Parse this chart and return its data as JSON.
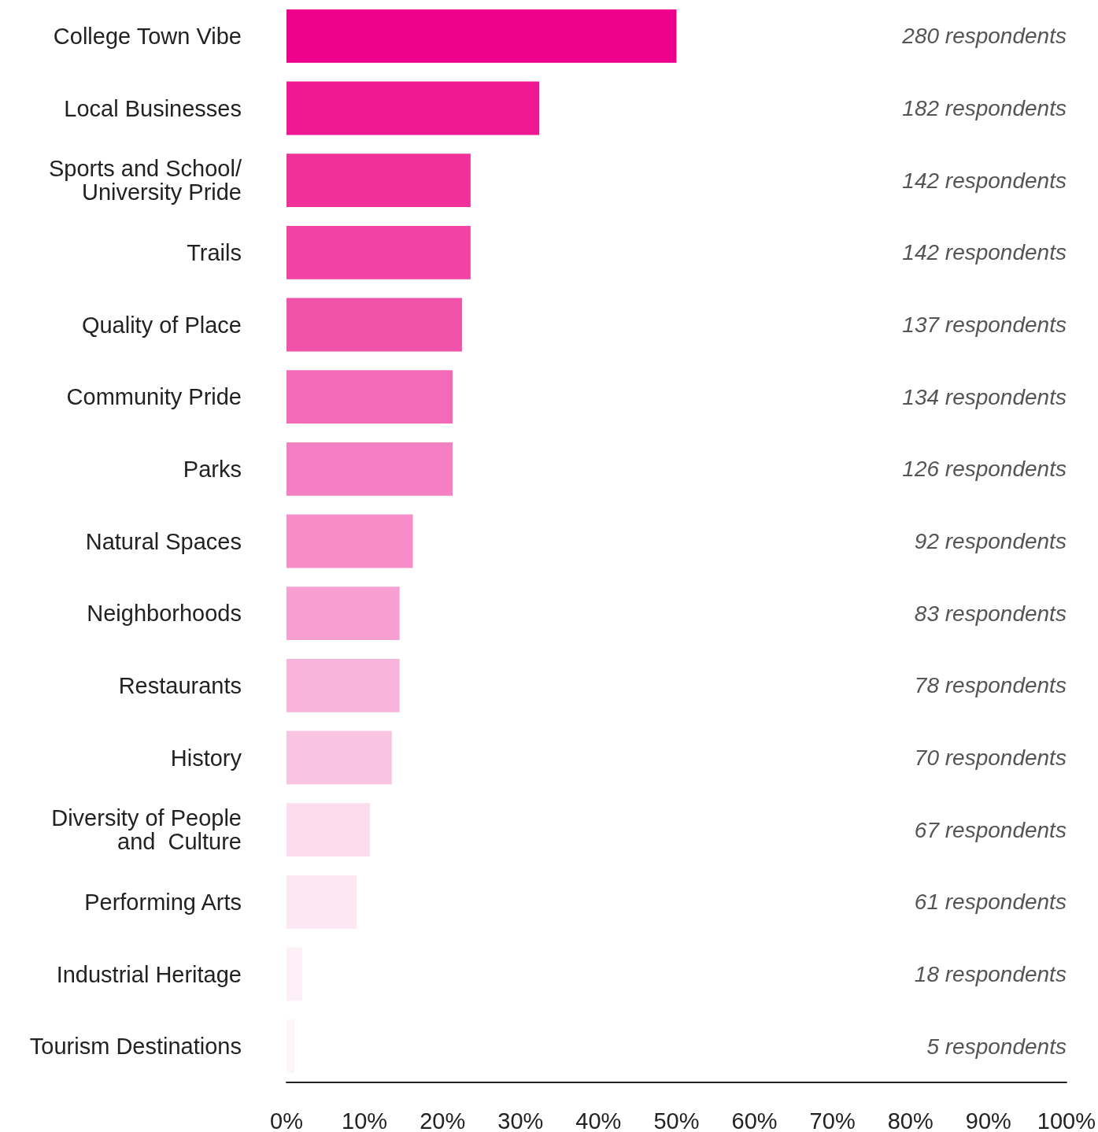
{
  "chart_data": {
    "type": "bar",
    "orientation": "horizontal",
    "categories": [
      "College Town Vibe",
      "Local Businesses",
      "Sports and School/\nUniversity Pride",
      "Trails",
      "Quality of Place",
      "Community Pride",
      "Parks",
      "Natural Spaces",
      "Neighborhoods",
      "Restaurants",
      "History",
      "Diversity of People\nand  Culture",
      "Performing Arts",
      "Industrial Heritage",
      "Tourism Destinations"
    ],
    "values": [
      50.0,
      32.4,
      23.6,
      23.6,
      22.5,
      21.3,
      21.3,
      16.2,
      14.5,
      14.5,
      13.5,
      10.7,
      9.0,
      2.0,
      1.0
    ],
    "colors": [
      "#ec008c",
      "#ee1892",
      "#ef3199",
      "#f043a3",
      "#f153ab",
      "#f36ab8",
      "#f47fc2",
      "#f68cc8",
      "#f89fd1",
      "#f8b4db",
      "#f9c4e2",
      "#fbdbee",
      "#fce8f3",
      "#fdf0f7",
      "#fdf5f9"
    ],
    "annotations": [
      "280 respondents",
      "182 respondents",
      "142 respondents",
      "142 respondents",
      "137 respondents",
      "134 respondents",
      "126 respondents",
      "92 respondents",
      "83 respondents",
      "78 respondents",
      "70 respondents",
      "67 respondents",
      "61 respondents",
      "18 respondents",
      "5 respondents"
    ],
    "xlim": [
      0,
      100
    ],
    "xticks": [
      {
        "value": 0,
        "label": "0%"
      },
      {
        "value": 10,
        "label": "10%"
      },
      {
        "value": 20,
        "label": "20%"
      },
      {
        "value": 30,
        "label": "30%"
      },
      {
        "value": 40,
        "label": "40%"
      },
      {
        "value": 50,
        "label": "50%"
      },
      {
        "value": 60,
        "label": "60%"
      },
      {
        "value": 70,
        "label": "70%"
      },
      {
        "value": 80,
        "label": "80%"
      },
      {
        "value": 90,
        "label": "90%"
      },
      {
        "value": 100,
        "label": "100%"
      }
    ],
    "grid": false
  }
}
